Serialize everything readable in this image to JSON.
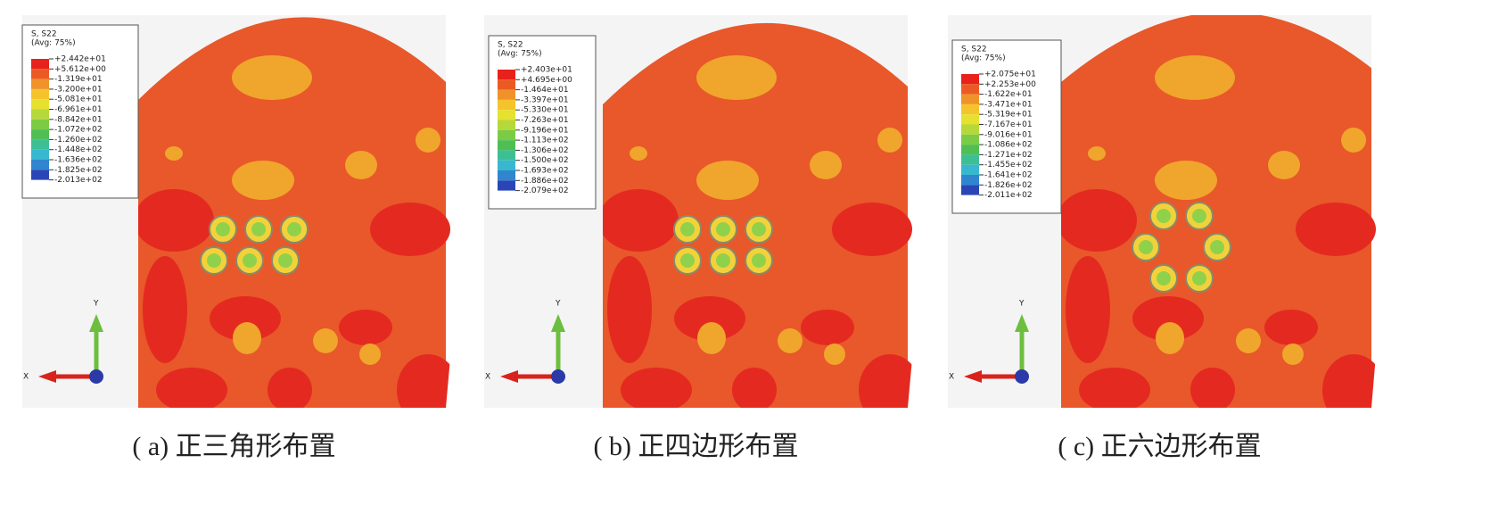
{
  "legend_colors": [
    "#e8211c",
    "#ec5a24",
    "#f0922a",
    "#f5c42c",
    "#e6e02f",
    "#b6d83a",
    "#7ccb45",
    "#4fbf55",
    "#3dbf95",
    "#37b8d0",
    "#2f86cf",
    "#2a46b6"
  ],
  "triad": {
    "x": "X",
    "y": "Y"
  },
  "panels": [
    {
      "legend_title": [
        "S, S22",
        "(Avg: 75%)"
      ],
      "legend_labels": [
        "+2.442e+01",
        "+5.612e+00",
        "-1.319e+01",
        "-3.200e+01",
        "-5.081e+01",
        "-6.961e+01",
        "-8.842e+01",
        "-1.072e+02",
        "-1.260e+02",
        "-1.448e+02",
        "-1.636e+02",
        "-1.825e+02",
        "-2.013e+02"
      ],
      "caption": "( a)  正三角形布置"
    },
    {
      "legend_title": [
        "S, S22",
        "(Avg: 75%)"
      ],
      "legend_labels": [
        "+2.403e+01",
        "+4.695e+00",
        "-1.464e+01",
        "-3.397e+01",
        "-5.330e+01",
        "-7.263e+01",
        "-9.196e+01",
        "-1.113e+02",
        "-1.306e+02",
        "-1.500e+02",
        "-1.693e+02",
        "-1.886e+02",
        "-2.079e+02"
      ],
      "caption": "( b)  正四边形布置"
    },
    {
      "legend_title": [
        "S, S22",
        "(Avg: 75%)"
      ],
      "legend_labels": [
        "+2.075e+01",
        "+2.253e+00",
        "-1.622e+01",
        "-3.471e+01",
        "-5.319e+01",
        "-7.167e+01",
        "-9.016e+01",
        "-1.086e+02",
        "-1.271e+02",
        "-1.455e+02",
        "-1.641e+02",
        "-1.826e+02",
        "-2.011e+02"
      ],
      "caption": "( c)  正六边形布置"
    }
  ]
}
